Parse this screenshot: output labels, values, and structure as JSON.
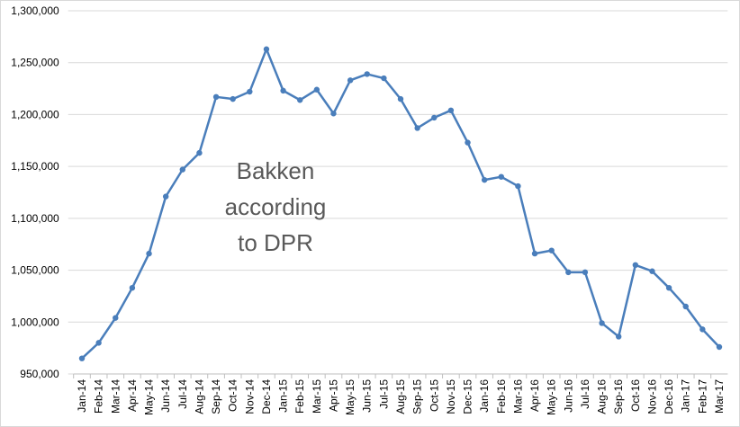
{
  "chart_data": {
    "type": "line",
    "categories": [
      "Jan-14",
      "Feb-14",
      "Mar-14",
      "Apr-14",
      "May-14",
      "Jun-14",
      "Jul-14",
      "Aug-14",
      "Sep-14",
      "Oct-14",
      "Nov-14",
      "Dec-14",
      "Jan-15",
      "Feb-15",
      "Mar-15",
      "Apr-15",
      "May-15",
      "Jun-15",
      "Jul-15",
      "Aug-15",
      "Sep-15",
      "Oct-15",
      "Nov-15",
      "Dec-15",
      "Jan-16",
      "Feb-16",
      "Mar-16",
      "Apr-16",
      "May-16",
      "Jun-16",
      "Jul-16",
      "Aug-16",
      "Sep-16",
      "Oct-16",
      "Nov-16",
      "Dec-16",
      "Jan-17",
      "Feb-17",
      "Mar-17"
    ],
    "series": [
      {
        "color": "#4a7ebb",
        "values": [
          965000,
          980000,
          1004000,
          1033000,
          1066000,
          1121000,
          1147000,
          1163000,
          1217000,
          1215000,
          1222000,
          1263000,
          1223000,
          1214000,
          1224000,
          1201000,
          1233000,
          1239000,
          1235000,
          1215000,
          1187000,
          1197000,
          1204000,
          1173000,
          1137000,
          1140000,
          1131000,
          1066000,
          1069000,
          1048000,
          1048000,
          999000,
          986000,
          1055000,
          1049000,
          1033000,
          1015000,
          993000,
          976000
        ]
      }
    ],
    "annotation": [
      "Bakken",
      "according",
      "to DPR"
    ],
    "ylim": [
      950000,
      1300000
    ],
    "yticks": [
      {
        "value": 950000,
        "label": "950,000"
      },
      {
        "value": 1000000,
        "label": "1,000,000"
      },
      {
        "value": 1050000,
        "label": "1,050,000"
      },
      {
        "value": 1100000,
        "label": "1,100,000"
      },
      {
        "value": 1150000,
        "label": "1,150,000"
      },
      {
        "value": 1200000,
        "label": "1,200,000"
      },
      {
        "value": 1250000,
        "label": "1,250,000"
      },
      {
        "value": 1300000,
        "label": "1,300,000"
      }
    ],
    "grid": true
  }
}
